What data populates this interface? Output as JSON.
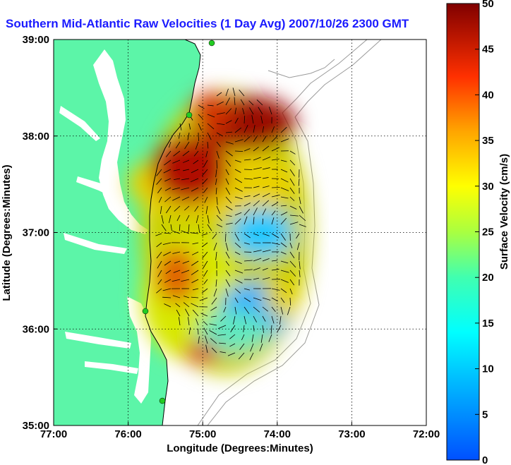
{
  "title": "Southern Mid-Atlantic Raw Velocities (1 Day Avg) 2007/10/26 2300 GMT",
  "map": {
    "xlabel": "Longitude (Degrees:Minutes)",
    "ylabel": "Latitude (Degrees:Minutes)",
    "x_ticks": [
      "77:00",
      "76:00",
      "75:00",
      "74:00",
      "73:00",
      "72:00"
    ],
    "y_ticks": [
      "39:00",
      "38:00",
      "37:00",
      "36:00",
      "35:00"
    ],
    "lon_range": [
      -77,
      -72
    ],
    "lat_range": [
      35,
      39
    ],
    "grid": true,
    "land_color": "#5cf5a8",
    "water_color": "#ffffff",
    "station_color": "#22cc22"
  },
  "colorbar": {
    "label": "Surface Velocity (cm/s)",
    "ticks": [
      "0",
      "5",
      "10",
      "15",
      "20",
      "25",
      "30",
      "35",
      "40",
      "45",
      "50"
    ],
    "range": [
      0,
      50
    ],
    "colormap": "jet"
  }
}
